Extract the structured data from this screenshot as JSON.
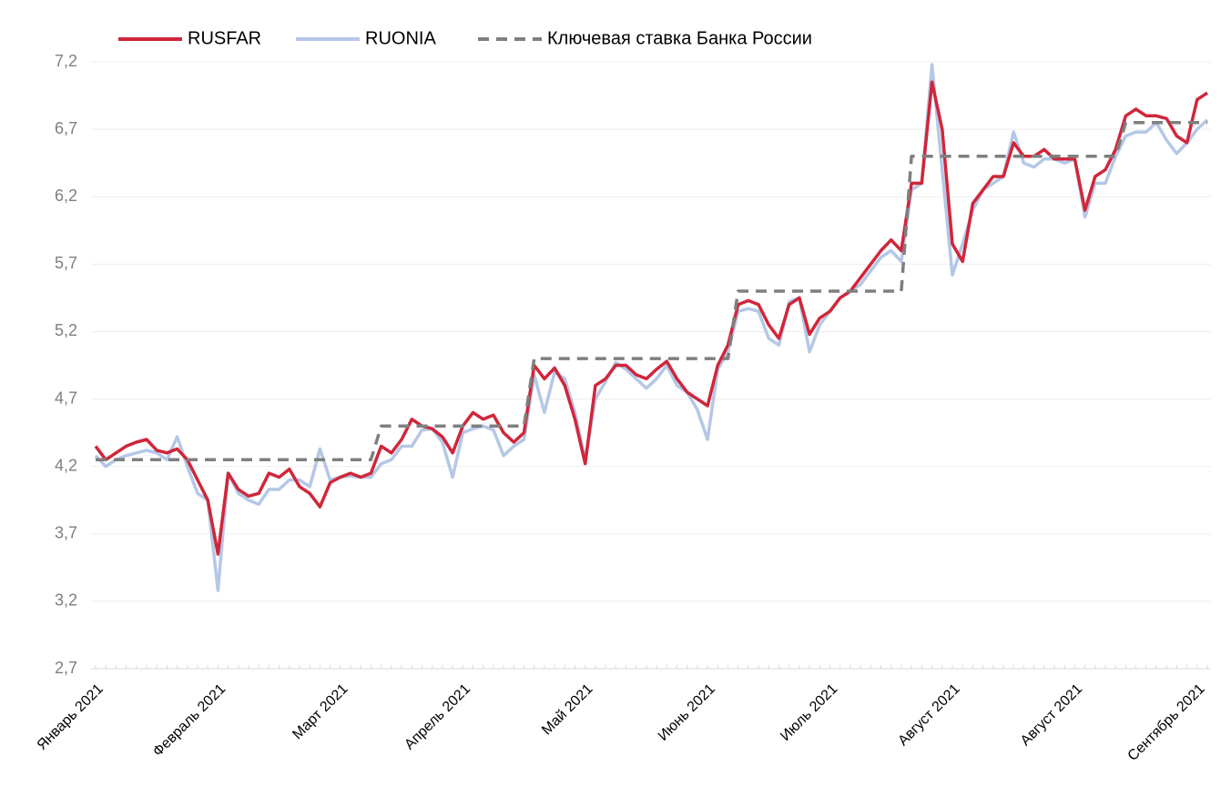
{
  "chart_data": {
    "type": "line",
    "categories": [
      "Январь 2021",
      null,
      null,
      null,
      null,
      null,
      null,
      null,
      null,
      null,
      null,
      null,
      "Февраль 2021",
      null,
      null,
      null,
      null,
      null,
      null,
      null,
      null,
      null,
      null,
      null,
      "Март 2021",
      null,
      null,
      null,
      null,
      null,
      null,
      null,
      null,
      null,
      null,
      null,
      "Апрель 2021",
      null,
      null,
      null,
      null,
      null,
      null,
      null,
      null,
      null,
      null,
      null,
      "Май 2021",
      null,
      null,
      null,
      null,
      null,
      null,
      null,
      null,
      null,
      null,
      null,
      "Июнь 2021",
      null,
      null,
      null,
      null,
      null,
      null,
      null,
      null,
      null,
      null,
      null,
      "Июль 2021",
      null,
      null,
      null,
      null,
      null,
      null,
      null,
      null,
      null,
      null,
      null,
      "Август 2021",
      null,
      null,
      null,
      null,
      null,
      null,
      null,
      null,
      null,
      null,
      null,
      "Август 2021",
      null,
      null,
      null,
      null,
      null,
      null,
      null,
      null,
      null,
      null,
      null,
      "Сентябрь 2021",
      null
    ],
    "series": [
      {
        "name": "RUSFAR",
        "color": "#d0263a",
        "dashed": false,
        "values": [
          4.35,
          4.25,
          4.3,
          4.35,
          4.38,
          4.4,
          4.32,
          4.3,
          4.33,
          4.25,
          4.1,
          3.95,
          3.55,
          4.15,
          4.03,
          3.98,
          4.0,
          4.15,
          4.12,
          4.18,
          4.05,
          4.0,
          3.9,
          4.08,
          4.12,
          4.15,
          4.12,
          4.15,
          4.35,
          4.3,
          4.4,
          4.55,
          4.5,
          4.48,
          4.42,
          4.3,
          4.5,
          4.6,
          4.55,
          4.58,
          4.45,
          4.38,
          4.45,
          4.95,
          4.85,
          4.93,
          4.8,
          4.55,
          4.22,
          4.8,
          4.85,
          4.95,
          4.95,
          4.88,
          4.85,
          4.92,
          4.98,
          4.85,
          4.75,
          4.7,
          4.65,
          4.95,
          5.1,
          5.4,
          5.43,
          5.4,
          5.25,
          5.15,
          5.4,
          5.45,
          5.18,
          5.3,
          5.35,
          5.45,
          5.5,
          5.6,
          5.7,
          5.8,
          5.88,
          5.8,
          6.3,
          6.3,
          7.05,
          6.7,
          5.85,
          5.72,
          6.15,
          6.25,
          6.35,
          6.35,
          6.6,
          6.5,
          6.5,
          6.55,
          6.48,
          6.48,
          6.48,
          6.1,
          6.35,
          6.4,
          6.55,
          6.8,
          6.85,
          6.8,
          6.8,
          6.78,
          6.65,
          6.6,
          6.92,
          6.97
        ]
      },
      {
        "name": "RUONIA",
        "color": "#b4c7e7",
        "dashed": false,
        "values": [
          4.28,
          4.2,
          4.25,
          4.28,
          4.3,
          4.32,
          4.3,
          4.25,
          4.42,
          4.2,
          4.0,
          3.95,
          3.28,
          4.15,
          4.0,
          3.95,
          3.92,
          4.03,
          4.03,
          4.1,
          4.1,
          4.05,
          4.33,
          4.1,
          4.12,
          4.13,
          4.12,
          4.12,
          4.22,
          4.25,
          4.35,
          4.35,
          4.47,
          4.48,
          4.38,
          4.12,
          4.45,
          4.48,
          4.5,
          4.47,
          4.28,
          4.35,
          4.4,
          4.88,
          4.6,
          4.9,
          4.85,
          4.6,
          4.25,
          4.7,
          4.83,
          4.97,
          4.92,
          4.85,
          4.78,
          4.85,
          4.95,
          4.8,
          4.75,
          4.62,
          4.4,
          4.92,
          5.05,
          5.35,
          5.37,
          5.35,
          5.15,
          5.1,
          5.42,
          5.45,
          5.05,
          5.25,
          5.35,
          5.45,
          5.5,
          5.55,
          5.65,
          5.75,
          5.8,
          5.72,
          6.25,
          6.3,
          7.18,
          6.4,
          5.62,
          5.85,
          6.1,
          6.25,
          6.3,
          6.35,
          6.68,
          6.45,
          6.42,
          6.48,
          6.48,
          6.45,
          6.48,
          6.05,
          6.3,
          6.3,
          6.5,
          6.65,
          6.68,
          6.68,
          6.75,
          6.62,
          6.52,
          6.6,
          6.7,
          6.77
        ]
      },
      {
        "name": "Ключевая ставка Банка России",
        "color": "#7f7f7f",
        "dashed": true,
        "values": [
          4.25,
          4.25,
          4.25,
          4.25,
          4.25,
          4.25,
          4.25,
          4.25,
          4.25,
          4.25,
          4.25,
          4.25,
          4.25,
          4.25,
          4.25,
          4.25,
          4.25,
          4.25,
          4.25,
          4.25,
          4.25,
          4.25,
          4.25,
          4.25,
          4.25,
          4.25,
          4.25,
          4.25,
          4.5,
          4.5,
          4.5,
          4.5,
          4.5,
          4.5,
          4.5,
          4.5,
          4.5,
          4.5,
          4.5,
          4.5,
          4.5,
          4.5,
          4.5,
          5.0,
          5.0,
          5.0,
          5.0,
          5.0,
          5.0,
          5.0,
          5.0,
          5.0,
          5.0,
          5.0,
          5.0,
          5.0,
          5.0,
          5.0,
          5.0,
          5.0,
          5.0,
          5.0,
          5.0,
          5.5,
          5.5,
          5.5,
          5.5,
          5.5,
          5.5,
          5.5,
          5.5,
          5.5,
          5.5,
          5.5,
          5.5,
          5.5,
          5.5,
          5.5,
          5.5,
          5.5,
          6.5,
          6.5,
          6.5,
          6.5,
          6.5,
          6.5,
          6.5,
          6.5,
          6.5,
          6.5,
          6.5,
          6.5,
          6.5,
          6.5,
          6.5,
          6.5,
          6.5,
          6.5,
          6.5,
          6.5,
          6.5,
          6.75,
          6.75,
          6.75,
          6.75,
          6.75,
          6.75,
          6.75,
          6.75,
          6.75
        ]
      }
    ],
    "ylim": [
      2.7,
      7.2
    ],
    "yticks": [
      {
        "value": 2.7,
        "label": "2,7"
      },
      {
        "value": 3.2,
        "label": "3,2"
      },
      {
        "value": 3.7,
        "label": "3,7"
      },
      {
        "value": 4.2,
        "label": "4,2"
      },
      {
        "value": 4.7,
        "label": "4,7"
      },
      {
        "value": 5.2,
        "label": "5,2"
      },
      {
        "value": 5.7,
        "label": "5,7"
      },
      {
        "value": 6.2,
        "label": "6,2"
      },
      {
        "value": 6.7,
        "label": "6,7"
      },
      {
        "value": 7.2,
        "label": "7,2"
      }
    ],
    "grid": true,
    "legend": "top"
  }
}
